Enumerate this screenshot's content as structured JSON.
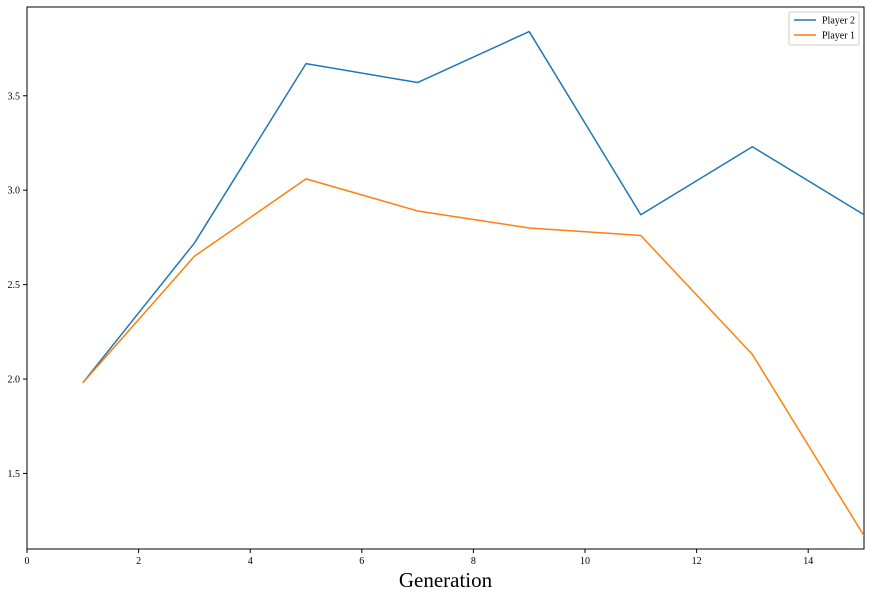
{
  "chart_data": {
    "type": "line",
    "title": "",
    "xlabel": "Generation",
    "ylabel": "",
    "x": [
      1,
      3,
      5,
      7,
      9,
      11,
      13,
      15
    ],
    "series": [
      {
        "name": "Player 2",
        "color": "#1f77b4",
        "values": [
          1.98,
          2.72,
          3.67,
          3.57,
          3.84,
          2.87,
          3.23,
          2.87
        ]
      },
      {
        "name": "Player 1",
        "color": "#ff7f0e",
        "values": [
          1.98,
          2.65,
          3.06,
          2.89,
          2.8,
          2.76,
          2.13,
          1.17
        ]
      }
    ],
    "xlim": [
      0,
      15
    ],
    "ylim": [
      1.1,
      3.97
    ],
    "xticks": [
      0,
      2,
      4,
      6,
      8,
      10,
      12,
      14
    ],
    "xtick_labels": [
      "0",
      "2",
      "4",
      "6",
      "8",
      "10",
      "12",
      "14"
    ],
    "yticks": [
      1.5,
      2.0,
      2.5,
      3.0,
      3.5
    ],
    "ytick_labels": [
      "1.5",
      "2.0",
      "2.5",
      "3.0",
      "3.5"
    ],
    "grid": false,
    "legend_position": "top-right"
  }
}
